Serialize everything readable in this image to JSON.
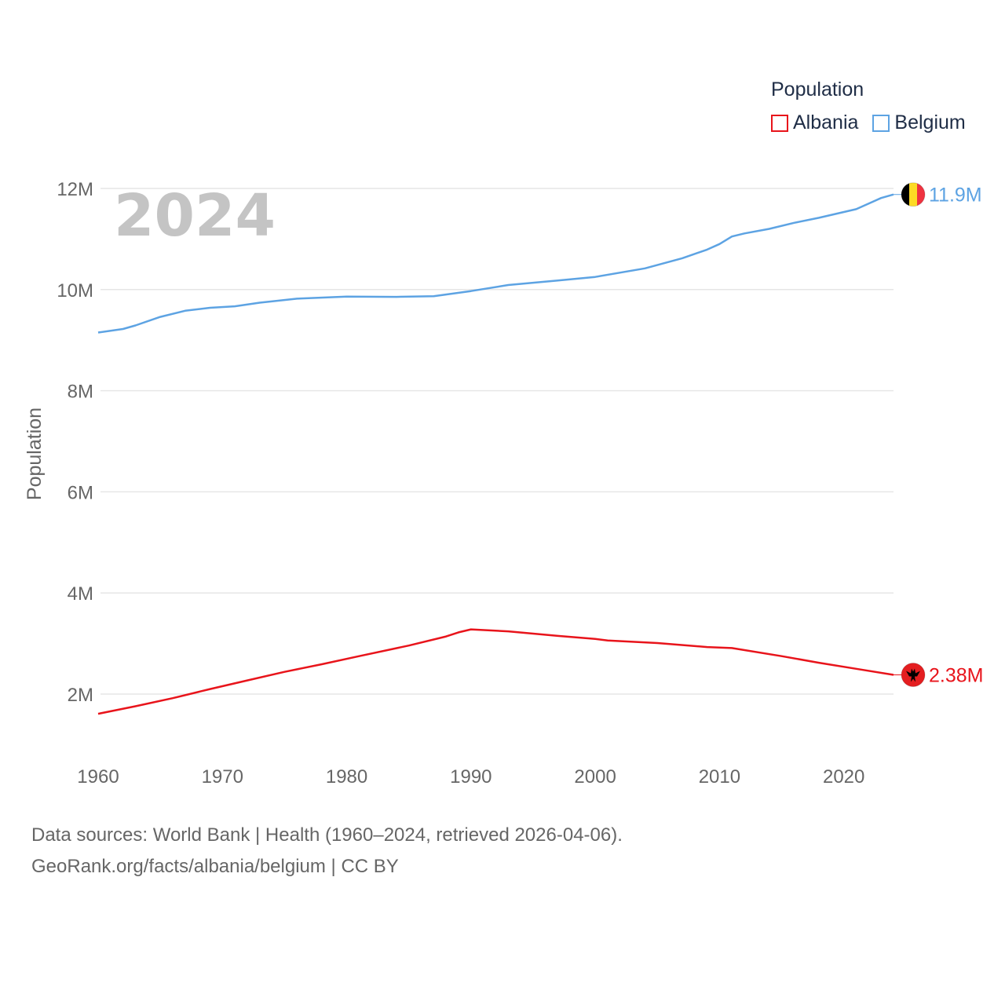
{
  "legend": {
    "title": "Population",
    "items": [
      {
        "name": "Albania",
        "color": "#e8141b"
      },
      {
        "name": "Belgium",
        "color": "#5da3e3"
      }
    ]
  },
  "footer": {
    "line1": "Data sources: World Bank | Health (1960–2024, retrieved 2026-04-06).",
    "line2": "GeoRank.org/facts/albania/belgium | CC BY"
  },
  "chart_data": {
    "type": "line",
    "title": "Population",
    "year_label": "2024",
    "xlabel": "",
    "ylabel": "Population",
    "xlim": [
      1960,
      2024
    ],
    "ylim": [
      1000000,
      12000000
    ],
    "x_ticks": [
      1960,
      1970,
      1980,
      1990,
      2000,
      2010,
      2020
    ],
    "y_ticks": [
      {
        "value": 2000000,
        "label": "2M"
      },
      {
        "value": 4000000,
        "label": "4M"
      },
      {
        "value": 6000000,
        "label": "6M"
      },
      {
        "value": 8000000,
        "label": "8M"
      },
      {
        "value": 10000000,
        "label": "10M"
      },
      {
        "value": 12000000,
        "label": "12M"
      }
    ],
    "grid": true,
    "series": [
      {
        "name": "Belgium",
        "color": "#5da3e3",
        "end_label": "11.9M",
        "flag": "belgium-flag",
        "points": [
          [
            1960,
            9150000
          ],
          [
            1962,
            9220000
          ],
          [
            1963,
            9290000
          ],
          [
            1965,
            9460000
          ],
          [
            1967,
            9580000
          ],
          [
            1969,
            9640000
          ],
          [
            1971,
            9670000
          ],
          [
            1973,
            9740000
          ],
          [
            1976,
            9820000
          ],
          [
            1980,
            9860000
          ],
          [
            1984,
            9855000
          ],
          [
            1987,
            9870000
          ],
          [
            1990,
            9970000
          ],
          [
            1993,
            10090000
          ],
          [
            1997,
            10180000
          ],
          [
            2000,
            10250000
          ],
          [
            2004,
            10420000
          ],
          [
            2007,
            10620000
          ],
          [
            2009,
            10790000
          ],
          [
            2010,
            10900000
          ],
          [
            2011,
            11050000
          ],
          [
            2012,
            11110000
          ],
          [
            2014,
            11200000
          ],
          [
            2016,
            11320000
          ],
          [
            2018,
            11420000
          ],
          [
            2021,
            11590000
          ],
          [
            2023,
            11810000
          ],
          [
            2024,
            11880000
          ]
        ]
      },
      {
        "name": "Albania",
        "color": "#e8141b",
        "end_label": "2.38M",
        "flag": "albania-flag",
        "points": [
          [
            1960,
            1610000
          ],
          [
            1963,
            1760000
          ],
          [
            1966,
            1920000
          ],
          [
            1969,
            2100000
          ],
          [
            1972,
            2270000
          ],
          [
            1975,
            2440000
          ],
          [
            1978,
            2590000
          ],
          [
            1981,
            2750000
          ],
          [
            1985,
            2960000
          ],
          [
            1988,
            3140000
          ],
          [
            1989,
            3220000
          ],
          [
            1990,
            3280000
          ],
          [
            1993,
            3240000
          ],
          [
            1997,
            3150000
          ],
          [
            2000,
            3090000
          ],
          [
            2001,
            3060000
          ],
          [
            2005,
            3010000
          ],
          [
            2009,
            2930000
          ],
          [
            2011,
            2910000
          ],
          [
            2015,
            2750000
          ],
          [
            2018,
            2620000
          ],
          [
            2021,
            2500000
          ],
          [
            2024,
            2380000
          ]
        ]
      }
    ]
  }
}
